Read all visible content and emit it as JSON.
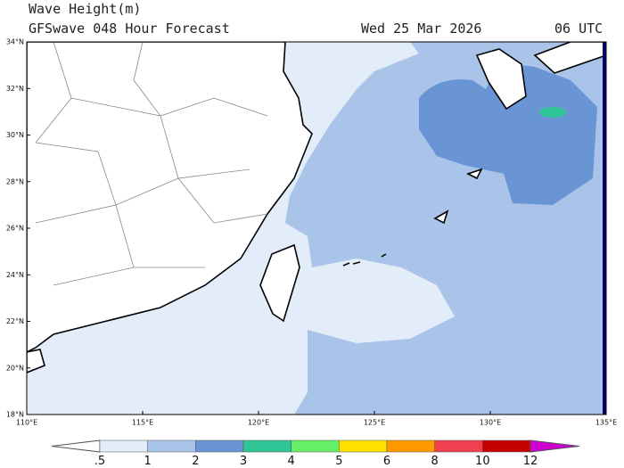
{
  "header": {
    "title": "Wave Height(m)",
    "subtitle": "GFSwave 048 Hour Forecast",
    "date": "Wed 25 Mar 2026",
    "time": "06 UTC"
  },
  "map": {
    "lat_labels": [
      "34°N",
      "32°N",
      "30°N",
      "28°N",
      "26°N",
      "24°N",
      "22°N",
      "20°N",
      "18°N"
    ],
    "lon_labels": [
      "110°E",
      "115°E",
      "120°E",
      "125°E",
      "130°E",
      "135°E"
    ]
  },
  "colorbar": {
    "labels": [
      ".5",
      "1",
      "2",
      "3",
      "4",
      "5",
      "6",
      "8",
      "10",
      "12"
    ],
    "colors": [
      "#ffffff",
      "#e2edf9",
      "#a9c4e8",
      "#6a95d5",
      "#2fc597",
      "#66ee66",
      "#ffe000",
      "#ff9a00",
      "#f04050",
      "#c40000",
      "#d000d0"
    ]
  }
}
